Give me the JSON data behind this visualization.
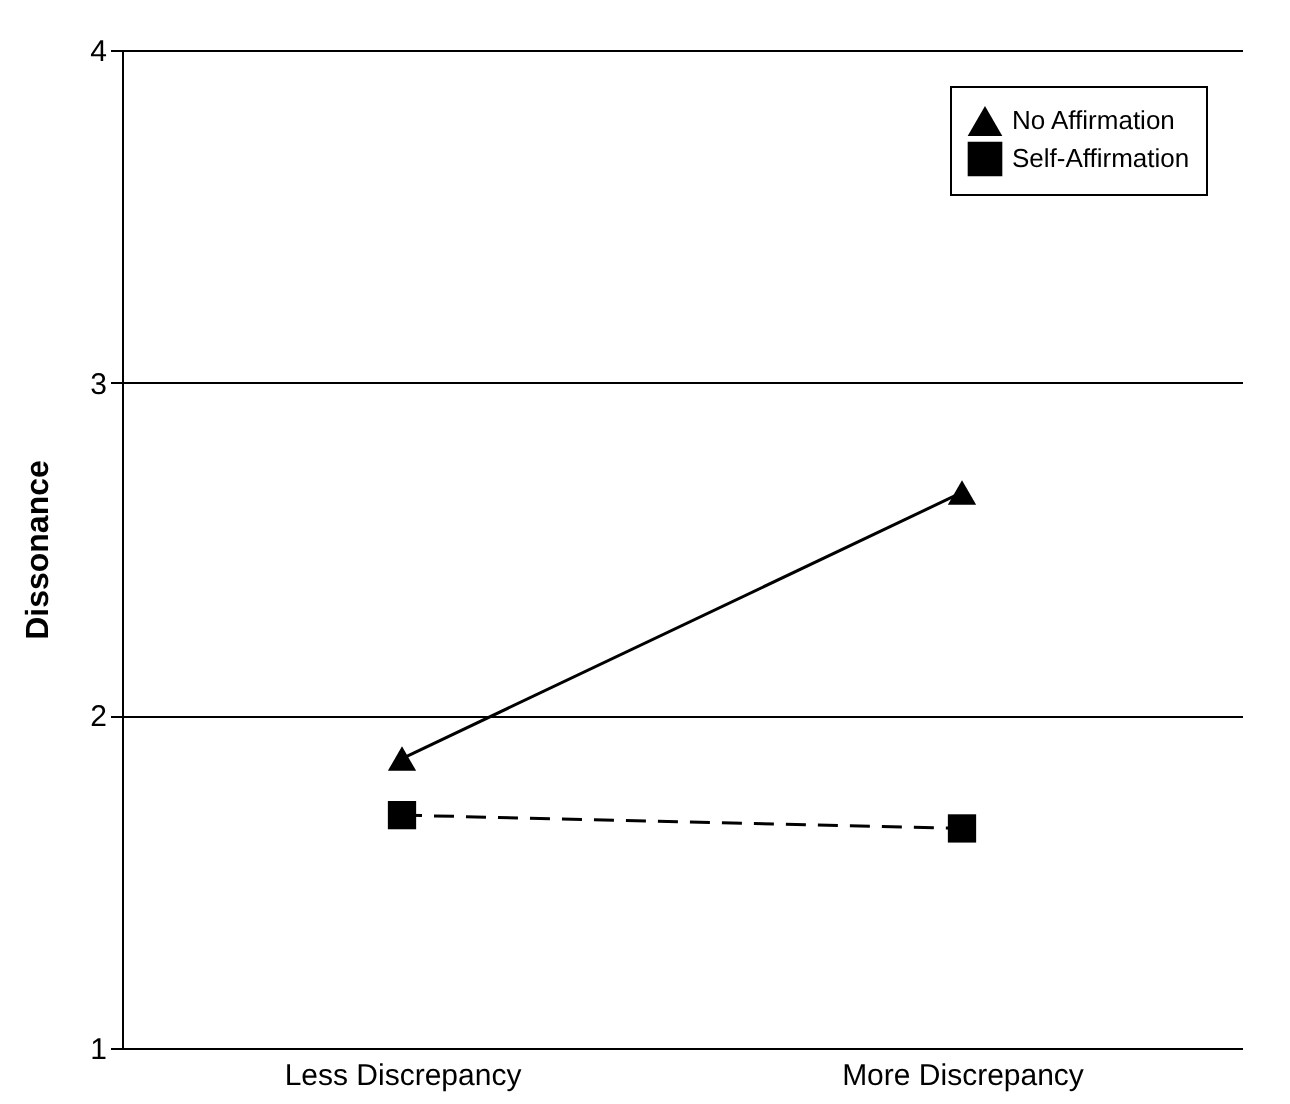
{
  "chart_data": {
    "type": "line",
    "ylabel": "Dissonance",
    "categories": [
      "Less Discrepancy",
      "More  Discrepancy"
    ],
    "series": [
      {
        "name": "No Affirmation",
        "color": "#000000",
        "marker": "triangle",
        "line_style": "solid",
        "values": [
          1.87,
          2.67
        ]
      },
      {
        "name": "Self-Affirmation",
        "color": "#000000",
        "marker": "square",
        "line_style": "dashed",
        "values": [
          1.7,
          1.66
        ]
      }
    ],
    "ylim": [
      1,
      4
    ],
    "yticks": [
      1,
      2,
      3,
      4
    ],
    "grid": "y",
    "legend": "top right"
  }
}
